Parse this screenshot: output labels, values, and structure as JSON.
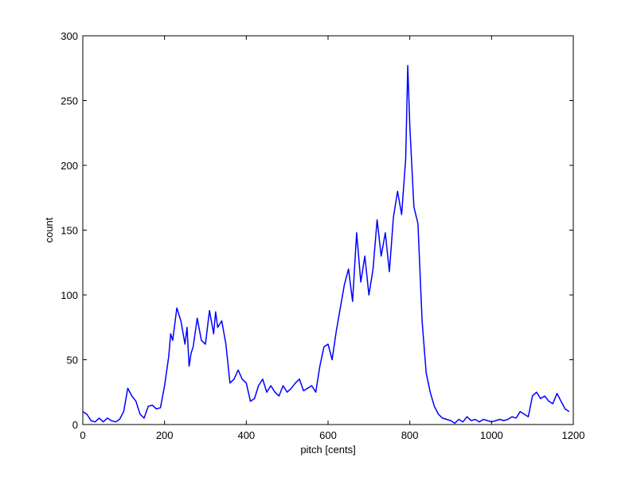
{
  "chart_data": {
    "type": "line",
    "title": "",
    "xlabel": "pitch [cents]",
    "ylabel": "count",
    "xlim": [
      0,
      1200
    ],
    "ylim": [
      0,
      300
    ],
    "xticks": [
      0,
      200,
      400,
      600,
      800,
      1000,
      1200
    ],
    "yticks": [
      0,
      50,
      100,
      150,
      200,
      250,
      300
    ],
    "grid": false,
    "legend": "none",
    "series": [
      {
        "color": "#0000ff",
        "x": [
          0,
          10,
          20,
          30,
          40,
          50,
          60,
          70,
          80,
          90,
          100,
          110,
          120,
          130,
          140,
          150,
          160,
          170,
          180,
          190,
          200,
          210,
          215,
          220,
          230,
          240,
          250,
          255,
          260,
          265,
          270,
          280,
          290,
          300,
          310,
          320,
          325,
          330,
          340,
          350,
          360,
          370,
          380,
          390,
          400,
          410,
          420,
          430,
          440,
          450,
          460,
          470,
          480,
          490,
          500,
          510,
          520,
          530,
          540,
          550,
          560,
          570,
          580,
          590,
          600,
          610,
          620,
          630,
          640,
          650,
          660,
          670,
          680,
          690,
          700,
          710,
          720,
          730,
          740,
          750,
          760,
          770,
          780,
          790,
          795,
          800,
          810,
          820,
          830,
          840,
          850,
          860,
          870,
          880,
          890,
          900,
          910,
          920,
          930,
          940,
          950,
          960,
          970,
          980,
          990,
          1000,
          1010,
          1020,
          1030,
          1040,
          1050,
          1060,
          1070,
          1080,
          1090,
          1100,
          1110,
          1120,
          1130,
          1140,
          1150,
          1160,
          1170,
          1180,
          1190
        ],
        "y": [
          10,
          8,
          3,
          2,
          5,
          2,
          5,
          3,
          2,
          4,
          10,
          28,
          22,
          18,
          8,
          5,
          14,
          15,
          12,
          13,
          30,
          52,
          70,
          65,
          90,
          80,
          62,
          75,
          45,
          55,
          60,
          82,
          65,
          62,
          88,
          70,
          87,
          75,
          80,
          62,
          32,
          35,
          42,
          35,
          32,
          18,
          20,
          30,
          35,
          25,
          30,
          25,
          22,
          30,
          25,
          28,
          32,
          35,
          26,
          28,
          30,
          25,
          45,
          60,
          62,
          50,
          72,
          90,
          108,
          120,
          95,
          148,
          110,
          130,
          100,
          120,
          158,
          130,
          148,
          118,
          160,
          180,
          162,
          205,
          277,
          230,
          168,
          155,
          80,
          40,
          25,
          14,
          8,
          5,
          4,
          3,
          1,
          4,
          2,
          6,
          3,
          4,
          2,
          4,
          3,
          2,
          3,
          4,
          3,
          4,
          6,
          5,
          10,
          8,
          6,
          22,
          25,
          20,
          22,
          18,
          16,
          24,
          18,
          12,
          10
        ]
      }
    ]
  }
}
